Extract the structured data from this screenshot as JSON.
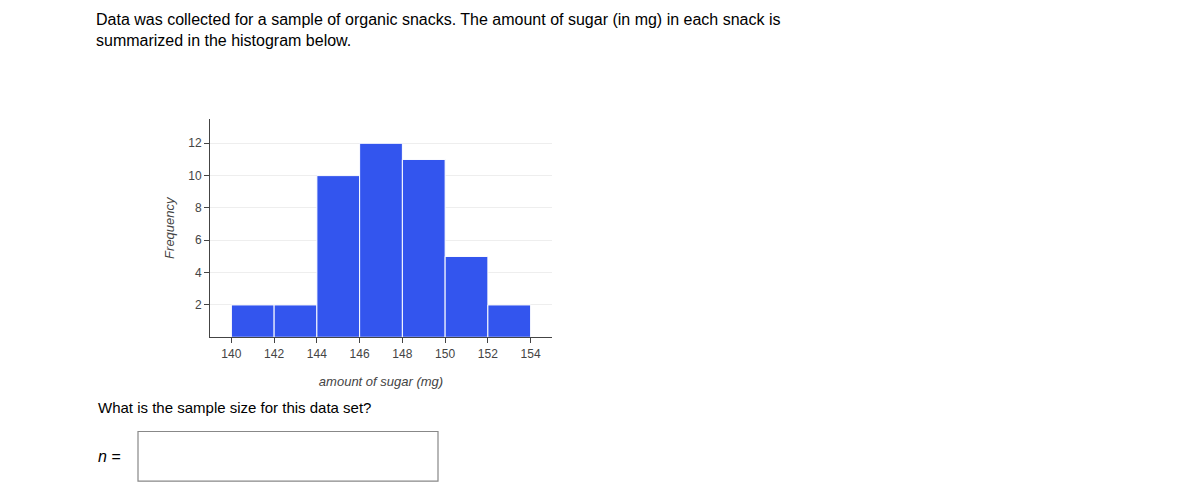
{
  "chart_data": {
    "type": "histogram",
    "title": "Data was collected for a sample of organic snacks. The amount of sugar (in mg) in each snack is",
    "subtitle": "summarized in the histogram below.",
    "bins": [
      140,
      142,
      144,
      146,
      148,
      150,
      152,
      154
    ],
    "values": [
      2,
      2,
      10,
      12,
      11,
      5,
      2
    ],
    "color": "#3355ee",
    "x_label": "amount of sugar (mg)",
    "y_label": "Frequency",
    "xlim": [
      139,
      155
    ],
    "ylim": [
      0,
      13.5
    ],
    "xticks": [
      140,
      142,
      144,
      146,
      148,
      150,
      152,
      154
    ],
    "yticks": [
      2,
      4,
      6,
      8,
      10,
      12
    ],
    "grid": "y",
    "annotations": [
      {
        "text": "What is the sample size for this data set?"
      },
      {
        "text": "n ="
      }
    ]
  }
}
